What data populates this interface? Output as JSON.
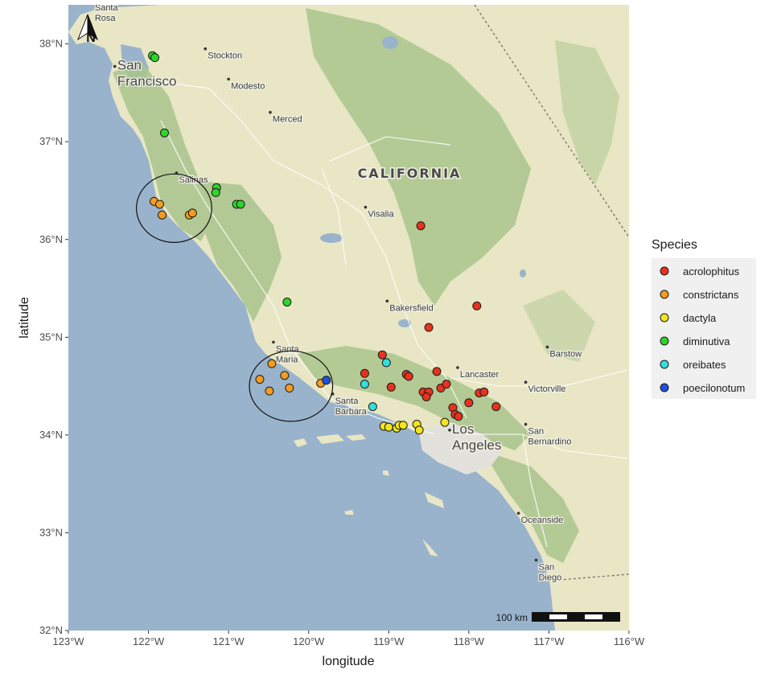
{
  "map": {
    "xlabel": "longitude",
    "ylabel": "latitude",
    "xlim": [
      -123,
      -116
    ],
    "ylim": [
      32,
      38.4
    ],
    "x_ticks": [
      {
        "value": -123,
        "label": "123°W"
      },
      {
        "value": -122,
        "label": "122°W"
      },
      {
        "value": -121,
        "label": "121°W"
      },
      {
        "value": -120,
        "label": "120°W"
      },
      {
        "value": -119,
        "label": "119°W"
      },
      {
        "value": -118,
        "label": "118°W"
      },
      {
        "value": -117,
        "label": "117°W"
      },
      {
        "value": -116,
        "label": "116°W"
      }
    ],
    "y_ticks": [
      {
        "value": 32,
        "label": "32°N"
      },
      {
        "value": 33,
        "label": "33°N"
      },
      {
        "value": 34,
        "label": "34°N"
      },
      {
        "value": 35,
        "label": "35°N"
      },
      {
        "value": 36,
        "label": "36°N"
      },
      {
        "value": 37,
        "label": "37°N"
      },
      {
        "value": 38,
        "label": "38°N"
      }
    ],
    "north_arrow_label": "N",
    "scale_bar_label": "100 km",
    "state_label": "CALIFORNIA",
    "cities": [
      {
        "name": "Santa Rosa",
        "lon": -122.7,
        "lat": 38.44
      },
      {
        "name": "Stockton",
        "lon": -121.29,
        "lat": 37.95
      },
      {
        "name": "San Francisco",
        "lon": -122.42,
        "lat": 37.77
      },
      {
        "name": "Modesto",
        "lon": -121.0,
        "lat": 37.64
      },
      {
        "name": "Merced",
        "lon": -120.48,
        "lat": 37.3
      },
      {
        "name": "Salinas",
        "lon": -121.65,
        "lat": 36.68
      },
      {
        "name": "Visalia",
        "lon": -119.29,
        "lat": 36.33
      },
      {
        "name": "Bakersfield",
        "lon": -119.02,
        "lat": 35.37
      },
      {
        "name": "Santa Maria",
        "lon": -120.44,
        "lat": 34.95
      },
      {
        "name": "Barstow",
        "lon": -117.02,
        "lat": 34.9
      },
      {
        "name": "Lancaster",
        "lon": -118.14,
        "lat": 34.69
      },
      {
        "name": "Victorville",
        "lon": -117.29,
        "lat": 34.54
      },
      {
        "name": "Santa Barbara",
        "lon": -119.7,
        "lat": 34.42
      },
      {
        "name": "Los Angeles",
        "lon": -118.24,
        "lat": 34.05
      },
      {
        "name": "San Bernardino",
        "lon": -117.29,
        "lat": 34.11
      },
      {
        "name": "Oceanside",
        "lon": -117.38,
        "lat": 33.2
      },
      {
        "name": "San Diego",
        "lon": -117.16,
        "lat": 32.72
      }
    ],
    "highlight_circles": [
      {
        "center_lon": -121.68,
        "center_lat": 36.32,
        "r_lon": 0.47,
        "r_lat": 0.35
      },
      {
        "center_lon": -120.22,
        "center_lat": 34.5,
        "r_lon": 0.52,
        "r_lat": 0.36
      }
    ]
  },
  "legend": {
    "title": "Species",
    "entries": [
      {
        "name": "acrolophitus",
        "color": "#e8321e"
      },
      {
        "name": "constrictans",
        "color": "#f39c1f"
      },
      {
        "name": "dactyla",
        "color": "#f2e51c"
      },
      {
        "name": "diminutiva",
        "color": "#2fd42a"
      },
      {
        "name": "oreibates",
        "color": "#35dde0"
      },
      {
        "name": "poecilonotum",
        "color": "#1e4fe0"
      }
    ]
  },
  "chart_data": {
    "type": "scatter",
    "xlabel": "longitude",
    "ylabel": "latitude",
    "xlim": [
      -123,
      -116
    ],
    "ylim": [
      32,
      38.4
    ],
    "series": [
      {
        "name": "acrolophitus",
        "points": [
          [
            -118.6,
            36.14
          ],
          [
            -117.9,
            35.32
          ],
          [
            -118.5,
            35.1
          ],
          [
            -119.08,
            34.82
          ],
          [
            -119.3,
            34.63
          ],
          [
            -118.78,
            34.62
          ],
          [
            -118.75,
            34.6
          ],
          [
            -118.97,
            34.49
          ],
          [
            -118.57,
            34.44
          ],
          [
            -118.5,
            34.44
          ],
          [
            -118.53,
            34.39
          ],
          [
            -118.4,
            34.65
          ],
          [
            -118.35,
            34.48
          ],
          [
            -118.28,
            34.52
          ],
          [
            -118.2,
            34.28
          ],
          [
            -118.17,
            34.21
          ],
          [
            -118.13,
            34.19
          ],
          [
            -118.0,
            34.33
          ],
          [
            -117.87,
            34.43
          ],
          [
            -117.81,
            34.44
          ],
          [
            -117.66,
            34.29
          ]
        ]
      },
      {
        "name": "constrictans",
        "points": [
          [
            -121.93,
            36.39
          ],
          [
            -121.86,
            36.36
          ],
          [
            -121.83,
            36.25
          ],
          [
            -121.49,
            36.25
          ],
          [
            -121.45,
            36.27
          ],
          [
            -120.46,
            34.73
          ],
          [
            -120.3,
            34.61
          ],
          [
            -120.61,
            34.57
          ],
          [
            -120.49,
            34.45
          ],
          [
            -120.24,
            34.48
          ],
          [
            -119.85,
            34.53
          ]
        ]
      },
      {
        "name": "dactyla",
        "points": [
          [
            -119.06,
            34.09
          ],
          [
            -119.0,
            34.08
          ],
          [
            -118.9,
            34.07
          ],
          [
            -118.87,
            34.1
          ],
          [
            -118.82,
            34.1
          ],
          [
            -118.65,
            34.11
          ],
          [
            -118.62,
            34.05
          ],
          [
            -118.3,
            34.13
          ]
        ]
      },
      {
        "name": "diminutiva",
        "points": [
          [
            -121.95,
            37.88
          ],
          [
            -121.92,
            37.86
          ],
          [
            -121.8,
            37.09
          ],
          [
            -121.15,
            36.53
          ],
          [
            -121.16,
            36.48
          ],
          [
            -120.9,
            36.36
          ],
          [
            -120.85,
            36.36
          ],
          [
            -120.27,
            35.36
          ]
        ]
      },
      {
        "name": "oreibates",
        "points": [
          [
            -119.03,
            34.74
          ],
          [
            -119.3,
            34.52
          ],
          [
            -119.2,
            34.29
          ]
        ]
      },
      {
        "name": "poecilonotum",
        "points": [
          [
            -119.78,
            34.56
          ]
        ]
      }
    ],
    "legend_position": "right"
  }
}
